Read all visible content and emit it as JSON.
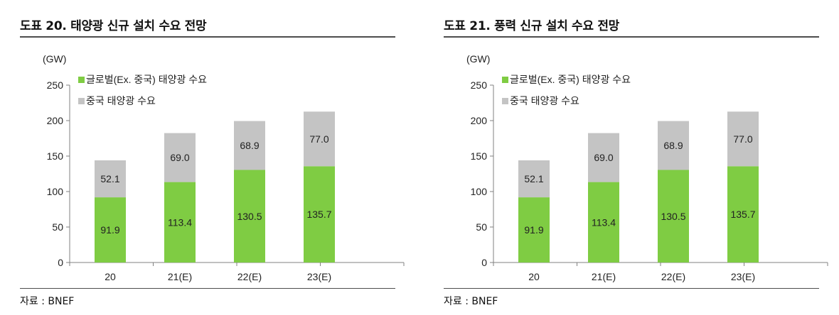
{
  "panels": [
    {
      "title": "도표 20. 태양광 신규 설치 수요 전망",
      "source": "자료 : BNEF"
    },
    {
      "title": "도표 21. 풍력 신규 설치 수요 전망",
      "source": "자료 : BNEF"
    }
  ],
  "colors": {
    "global": "#7fcc43",
    "china": "#c4c4c4",
    "axis": "#808080"
  },
  "chart_data": [
    {
      "type": "bar",
      "stacked": true,
      "title": "도표 20. 태양광 신규 설치 수요 전망",
      "unit_label": "(GW)",
      "categories": [
        "20",
        "21(E)",
        "22(E)",
        "23(E)"
      ],
      "series": [
        {
          "name": "글로벌(Ex. 중국) 태양광 수요",
          "values": [
            91.9,
            113.4,
            130.5,
            135.7
          ],
          "labels": [
            "91.9",
            "113.4",
            "130.5",
            "135.7"
          ]
        },
        {
          "name": "중국 태양광 수요",
          "values": [
            52.1,
            69.0,
            68.9,
            77.0
          ],
          "labels": [
            "52.1",
            "69.0",
            "68.9",
            "77.0"
          ]
        }
      ],
      "ylim": [
        0,
        250
      ],
      "yticks": [
        0,
        50,
        100,
        150,
        200,
        250
      ],
      "grid": false,
      "legend_position": "top-left"
    },
    {
      "type": "bar",
      "stacked": true,
      "title": "도표 21. 풍력 신규 설치 수요 전망",
      "unit_label": "(GW)",
      "categories": [
        "20",
        "21(E)",
        "22(E)",
        "23(E)"
      ],
      "series": [
        {
          "name": "글로벌(Ex. 중국) 태양광 수요",
          "values": [
            91.9,
            113.4,
            130.5,
            135.7
          ],
          "labels": [
            "91.9",
            "113.4",
            "130.5",
            "135.7"
          ]
        },
        {
          "name": "중국 태양광 수요",
          "values": [
            52.1,
            69.0,
            68.9,
            77.0
          ],
          "labels": [
            "52.1",
            "69.0",
            "68.9",
            "77.0"
          ]
        }
      ],
      "ylim": [
        0,
        250
      ],
      "yticks": [
        0,
        50,
        100,
        150,
        200,
        250
      ],
      "grid": false,
      "legend_position": "top-left"
    }
  ]
}
